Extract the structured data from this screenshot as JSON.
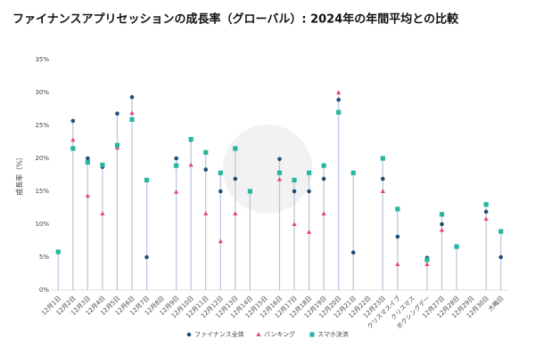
{
  "chart_data": {
    "type": "stem-dot",
    "title": "ファイナンスアプリセッションの成長率（グローバル）: 2024年の年間平均との比較",
    "y_label": "成長率（%）",
    "categories": [
      "12月1日",
      "12月2日",
      "12月3日",
      "12月4日",
      "12月5日",
      "12月6日",
      "12月7日",
      "12月8日",
      "12月9日",
      "12月10日",
      "12月11日",
      "12月12日",
      "12月13日",
      "12月14日",
      "12月15日",
      "12月16日",
      "12月17日",
      "12月18日",
      "12月19日",
      "12月20日",
      "12月21日",
      "12月22日",
      "12月23日",
      "クリスマスイブ",
      "クリスマス",
      "ボクシングデー",
      "12月27日",
      "12月28日",
      "12月29日",
      "12月30日",
      "大晦日"
    ],
    "series": [
      {
        "name": "ファイナンス全体",
        "color": "#1f4e79",
        "marker": "circle",
        "values": [
          null,
          25.7,
          20,
          18.7,
          26.8,
          29.3,
          5.0,
          null,
          20,
          22.8,
          18.3,
          15,
          16.9,
          null,
          null,
          19.9,
          15,
          15,
          16.9,
          28.9,
          5.7,
          null,
          16.9,
          8.1,
          null,
          4.9,
          10,
          null,
          null,
          11.9,
          5.0
        ]
      },
      {
        "name": "バンキング",
        "color": "#e8437a",
        "marker": "triangle",
        "values": [
          null,
          22.8,
          14.3,
          11.6,
          21.6,
          26.9,
          null,
          null,
          14.9,
          19.0,
          11.6,
          7.4,
          11.6,
          null,
          null,
          16.8,
          10,
          8.8,
          11.6,
          30,
          null,
          null,
          15,
          3.9,
          null,
          3.9,
          9.1,
          null,
          null,
          10.8,
          null
        ]
      },
      {
        "name": "スマホ決済",
        "color": "#26b5a0",
        "marker": "square",
        "values": [
          5.8,
          21.5,
          19.4,
          19.0,
          22,
          25.9,
          16.7,
          null,
          18.9,
          22.9,
          20.9,
          17.8,
          21.5,
          15.0,
          null,
          17.8,
          16.7,
          17.8,
          18.9,
          27.0,
          17.8,
          null,
          20,
          12.3,
          null,
          4.6,
          11.5,
          6.6,
          null,
          13,
          8.9
        ]
      }
    ],
    "ylim": [
      0,
      35
    ],
    "yticks": [
      {
        "value": 0,
        "label": "0%"
      },
      {
        "value": 5,
        "label": "5%"
      },
      {
        "value": 10,
        "label": "10%"
      },
      {
        "value": 15,
        "label": "15%"
      },
      {
        "value": 20,
        "label": "20%"
      },
      {
        "value": 25,
        "label": "25%"
      },
      {
        "value": 30,
        "label": "30%"
      },
      {
        "value": 35,
        "label": "35%"
      }
    ],
    "stem_color": "#b8c4dc",
    "grid": false,
    "legend": "bottom"
  }
}
